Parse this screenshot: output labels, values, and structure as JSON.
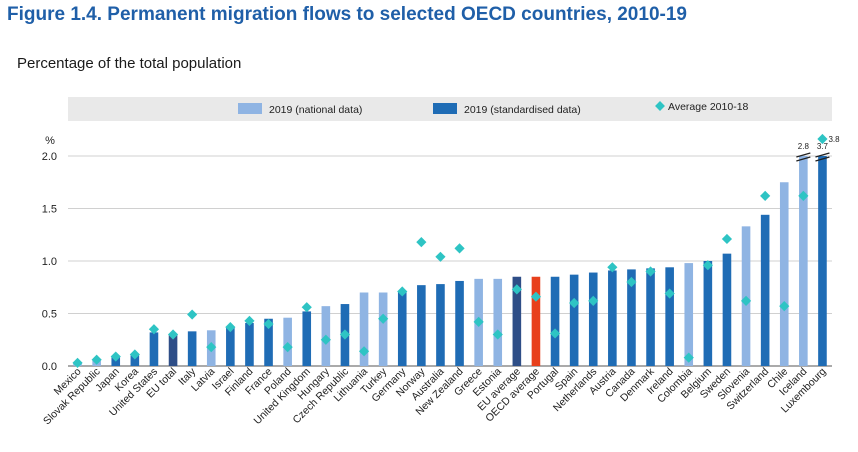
{
  "figure": {
    "title": "Figure 1.4. Permanent migration flows to selected OECD countries, 2010-19",
    "subtitle": "Percentage of the total population"
  },
  "colors": {
    "national": "#8fb4e3",
    "standardised": "#1f6cb5",
    "eu_total": "#2e4e87",
    "oecd_average": "#e8401c",
    "average_marker": "#2ec4c4",
    "legend_bg": "#e9e9e9",
    "grid": "#d0d0d0"
  },
  "chart_data": {
    "type": "bar",
    "y_unit_label": "%",
    "ylim": [
      0,
      2.0
    ],
    "y_ticks": [
      "0.0",
      "0.5",
      "1.0",
      "1.5",
      "2.0"
    ],
    "grid": true,
    "legend_placement": "top",
    "legend": [
      {
        "key": "national",
        "label": "2019 (national data)",
        "shape": "bar"
      },
      {
        "key": "standardised",
        "label": "2019 (standardised data)",
        "shape": "bar"
      },
      {
        "key": "avg",
        "label": "Average 2010-18",
        "shape": "diamond"
      }
    ],
    "categories": [
      "Mexico",
      "Slovak Republic",
      "Japan",
      "Korea",
      "United States",
      "EU total",
      "Italy",
      "Latvia",
      "Israel",
      "Finland",
      "France",
      "Poland",
      "United Kingdom",
      "Hungary",
      "Czech Republic",
      "Lithuania",
      "Turkey",
      "Germany",
      "Norway",
      "Australia",
      "New Zealand",
      "Greece",
      "Estonia",
      "EU average",
      "OECD average",
      "Portugal",
      "Spain",
      "Netherlands",
      "Austria",
      "Canada",
      "Denmark",
      "Ireland",
      "Colombia",
      "Belgium",
      "Sweden",
      "Slovenia",
      "Switzerland",
      "Chile",
      "Iceland",
      "Luxembourg"
    ],
    "values_2019": [
      0.03,
      0.05,
      0.09,
      0.1,
      0.32,
      0.3,
      0.33,
      0.34,
      0.37,
      0.41,
      0.45,
      0.46,
      0.52,
      0.57,
      0.59,
      0.7,
      0.7,
      0.71,
      0.77,
      0.78,
      0.81,
      0.83,
      0.83,
      0.85,
      0.85,
      0.85,
      0.87,
      0.89,
      0.91,
      0.92,
      0.93,
      0.94,
      0.98,
      1.0,
      1.07,
      1.33,
      1.44,
      1.75,
      2.8,
      3.7
    ],
    "bar_type": [
      "national",
      "national",
      "standardised",
      "standardised",
      "standardised",
      "eu_total",
      "standardised",
      "national",
      "standardised",
      "standardised",
      "standardised",
      "national",
      "standardised",
      "national",
      "standardised",
      "national",
      "national",
      "standardised",
      "standardised",
      "standardised",
      "standardised",
      "national",
      "national",
      "eu_total",
      "oecd_average",
      "standardised",
      "standardised",
      "standardised",
      "standardised",
      "standardised",
      "standardised",
      "standardised",
      "national",
      "standardised",
      "standardised",
      "national",
      "standardised",
      "national",
      "national",
      "standardised"
    ],
    "average_2010_18": [
      0.03,
      0.06,
      0.09,
      0.11,
      0.35,
      0.3,
      0.49,
      0.18,
      0.37,
      0.43,
      0.4,
      0.18,
      0.56,
      0.25,
      0.3,
      0.14,
      0.45,
      0.71,
      1.18,
      1.04,
      1.12,
      0.42,
      0.3,
      0.73,
      0.66,
      0.31,
      0.6,
      0.62,
      0.94,
      0.8,
      0.9,
      0.69,
      0.08,
      0.96,
      1.21,
      0.62,
      1.62,
      0.57,
      1.62,
      3.8
    ],
    "data_labels": [
      {
        "category": "Iceland",
        "text": "2.8"
      },
      {
        "category": "Luxembourg",
        "text": "3.7"
      },
      {
        "category": "Luxembourg",
        "text": "3.8"
      }
    ]
  }
}
